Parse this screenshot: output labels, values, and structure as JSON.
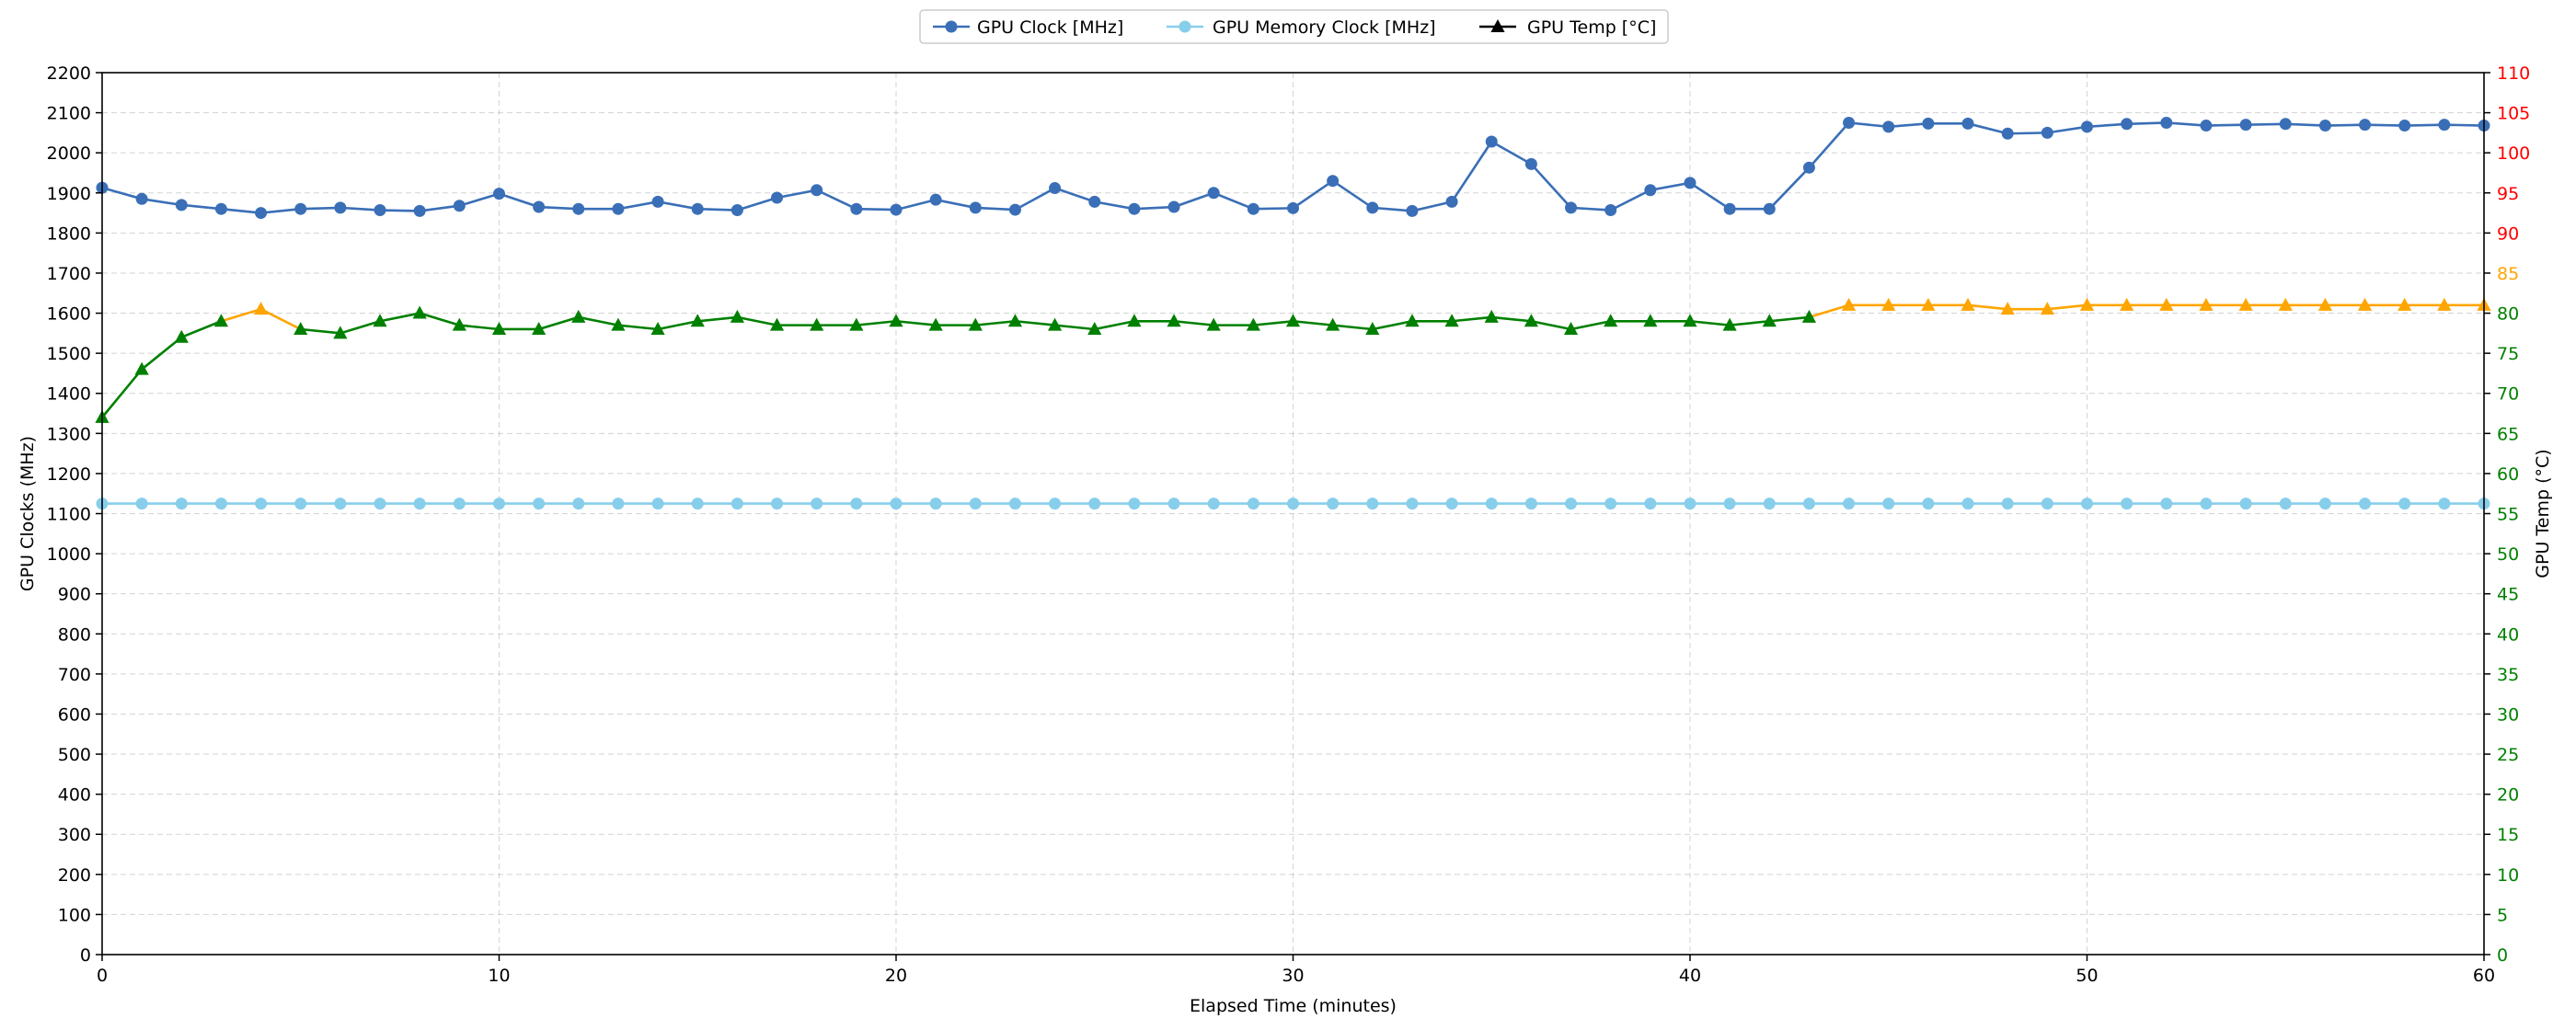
{
  "chart_data": {
    "type": "line",
    "xlabel": "Elapsed Time (minutes)",
    "ylabel": "GPU Clocks (MHz)",
    "y2label": "GPU Temp (°C)",
    "xlim": [
      0,
      60
    ],
    "ylim": [
      0,
      2200
    ],
    "y2lim": [
      0,
      110
    ],
    "grid": true,
    "legend_position": "top-center",
    "x_ticks": [
      0,
      10,
      20,
      30,
      40,
      50,
      60
    ],
    "y_ticks": [
      0,
      100,
      200,
      300,
      400,
      500,
      600,
      700,
      800,
      900,
      1000,
      1100,
      1200,
      1300,
      1400,
      1500,
      1600,
      1700,
      1800,
      1900,
      2000,
      2100,
      2200
    ],
    "y2_ticks": [
      0,
      5,
      10,
      15,
      20,
      25,
      30,
      35,
      40,
      45,
      50,
      55,
      60,
      65,
      70,
      75,
      80,
      85,
      90,
      95,
      100,
      105,
      110
    ],
    "y2_tick_colors": {
      "green_max": 80,
      "orange_max": 85,
      "green": "#008000",
      "orange": "#FFA500",
      "red": "#FF0000"
    },
    "x": [
      0,
      1,
      2,
      3,
      4,
      5,
      6,
      7,
      8,
      9,
      10,
      11,
      12,
      13,
      14,
      15,
      16,
      17,
      18,
      19,
      20,
      21,
      22,
      23,
      24,
      25,
      26,
      27,
      28,
      29,
      30,
      31,
      32,
      33,
      34,
      35,
      36,
      37,
      38,
      39,
      40,
      41,
      42,
      43,
      44,
      45,
      46,
      47,
      48,
      49,
      50,
      51,
      52,
      53,
      54,
      55,
      56,
      57,
      58,
      59,
      60
    ],
    "series": [
      {
        "name": "GPU Clock [MHz]",
        "axis": "left",
        "marker": "circle",
        "color": "#3A6FB7",
        "values": [
          1913,
          1885,
          1870,
          1860,
          1850,
          1860,
          1863,
          1857,
          1855,
          1868,
          1898,
          1865,
          1860,
          1860,
          1878,
          1860,
          1857,
          1888,
          1907,
          1860,
          1858,
          1883,
          1863,
          1858,
          1912,
          1878,
          1860,
          1865,
          1900,
          1860,
          1862,
          1930,
          1863,
          1855,
          1878,
          2028,
          1972,
          1863,
          1857,
          1907,
          1925,
          1860,
          1860,
          1963,
          2075,
          2065,
          2073,
          2073,
          2048,
          2050,
          2065,
          2072,
          2075,
          2068,
          2070,
          2072,
          2068,
          2070,
          2068,
          2070,
          2068
        ]
      },
      {
        "name": "GPU Memory Clock [MHz]",
        "axis": "left",
        "marker": "circle",
        "color": "#87CEEB",
        "values": [
          1125,
          1125,
          1125,
          1125,
          1125,
          1125,
          1125,
          1125,
          1125,
          1125,
          1125,
          1125,
          1125,
          1125,
          1125,
          1125,
          1125,
          1125,
          1125,
          1125,
          1125,
          1125,
          1125,
          1125,
          1125,
          1125,
          1125,
          1125,
          1125,
          1125,
          1125,
          1125,
          1125,
          1125,
          1125,
          1125,
          1125,
          1125,
          1125,
          1125,
          1125,
          1125,
          1125,
          1125,
          1125,
          1125,
          1125,
          1125,
          1125,
          1125,
          1125,
          1125,
          1125,
          1125,
          1125,
          1125,
          1125,
          1125,
          1125,
          1125,
          1125
        ]
      },
      {
        "name": "GPU Temp [°C]",
        "axis": "right",
        "marker": "triangle",
        "color": "#000000",
        "segment_colors": {
          "green": "#008000",
          "orange": "#FFA500",
          "threshold": 80
        },
        "values": [
          67,
          73,
          77,
          79,
          80.5,
          78,
          77.5,
          79,
          80,
          78.5,
          78,
          78,
          79.5,
          78.5,
          78,
          79,
          79.5,
          78.5,
          78.5,
          78.5,
          79,
          78.5,
          78.5,
          79,
          78.5,
          78,
          79,
          79,
          78.5,
          78.5,
          79,
          78.5,
          78,
          79,
          79,
          79.5,
          79,
          78,
          79,
          79,
          79,
          78.5,
          79,
          79.5,
          81,
          81,
          81,
          81,
          80.5,
          80.5,
          81,
          81,
          81,
          81,
          81,
          81,
          81,
          81,
          81,
          81,
          81
        ]
      }
    ]
  }
}
